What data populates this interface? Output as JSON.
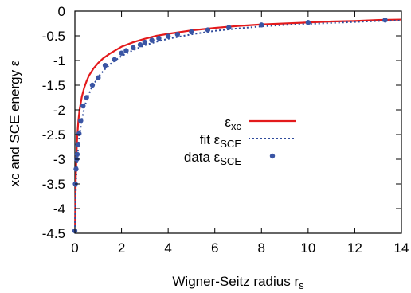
{
  "chart_data": {
    "type": "line",
    "xlabel": "Wigner-Seitz radius r",
    "xlabel_sub": "s",
    "ylabel": "xc and SCE energy ε",
    "xlim": [
      0,
      14
    ],
    "ylim": [
      -4.5,
      0
    ],
    "xticks": [
      "0",
      "2",
      "4",
      "6",
      "8",
      "10",
      "12",
      "14"
    ],
    "xtick_values": [
      0,
      2,
      4,
      6,
      8,
      10,
      12,
      14
    ],
    "yticks": [
      "0",
      "-0.5",
      "-1",
      "-1.5",
      "-2",
      "-2.5",
      "-3",
      "-3.5",
      "-4",
      "-4.5"
    ],
    "ytick_values": [
      0,
      -0.5,
      -1,
      -1.5,
      -2,
      -2.5,
      -3,
      -3.5,
      -4,
      -4.5
    ],
    "grid": false,
    "legend_placement": "center-right",
    "series": [
      {
        "name": "ε",
        "name_sub": "xc",
        "style": "solid",
        "color": "#e31a1c",
        "x": [
          0.01,
          0.02,
          0.04,
          0.07,
          0.1,
          0.15,
          0.2,
          0.3,
          0.4,
          0.5,
          0.6,
          0.8,
          1.0,
          1.2,
          1.5,
          2,
          2.5,
          3,
          3.5,
          4,
          5,
          6,
          7,
          8,
          9,
          10,
          11,
          12,
          13,
          14
        ],
        "y": [
          -4.32,
          -3.98,
          -3.4,
          -2.88,
          -2.55,
          -2.22,
          -2.0,
          -1.73,
          -1.55,
          -1.42,
          -1.31,
          -1.16,
          -1.05,
          -0.96,
          -0.86,
          -0.72,
          -0.63,
          -0.56,
          -0.5,
          -0.46,
          -0.39,
          -0.34,
          -0.3,
          -0.27,
          -0.25,
          -0.23,
          -0.21,
          -0.2,
          -0.18,
          -0.17
        ]
      },
      {
        "name": "fit ε",
        "name_sub": "SCE",
        "style": "dotted",
        "color": "#2e4a9b",
        "x": [
          0.0,
          0.02,
          0.05,
          0.1,
          0.15,
          0.2,
          0.3,
          0.4,
          0.5,
          0.7,
          1.0,
          1.3,
          1.6,
          2.0,
          2.5,
          3,
          3.5,
          4,
          5,
          6,
          7,
          8,
          9,
          10,
          11,
          12,
          13,
          14
        ],
        "y": [
          -4.45,
          -3.95,
          -3.45,
          -3.0,
          -2.72,
          -2.5,
          -2.2,
          -1.97,
          -1.8,
          -1.57,
          -1.33,
          -1.17,
          -1.04,
          -0.91,
          -0.79,
          -0.69,
          -0.62,
          -0.56,
          -0.47,
          -0.4,
          -0.35,
          -0.31,
          -0.28,
          -0.26,
          -0.24,
          -0.22,
          -0.2,
          -0.19
        ]
      },
      {
        "name": "data ε",
        "name_sub": "SCE",
        "style": "points",
        "color": "#3a55a4",
        "x": [
          0.0,
          0.02,
          0.05,
          0.08,
          0.1,
          0.13,
          0.18,
          0.25,
          0.35,
          0.5,
          0.75,
          1.0,
          1.3,
          1.7,
          2.0,
          2.2,
          2.5,
          2.8,
          3.0,
          3.3,
          3.6,
          4.0,
          4.4,
          5.0,
          5.7,
          6.6,
          8.0,
          10.0,
          13.3
        ],
        "y": [
          -4.45,
          -3.5,
          -3.2,
          -3.0,
          -2.9,
          -2.7,
          -2.48,
          -2.22,
          -1.92,
          -1.75,
          -1.5,
          -1.35,
          -1.1,
          -0.98,
          -0.85,
          -0.8,
          -0.74,
          -0.68,
          -0.63,
          -0.59,
          -0.55,
          -0.51,
          -0.47,
          -0.42,
          -0.38,
          -0.33,
          -0.28,
          -0.23,
          -0.18
        ]
      }
    ]
  }
}
